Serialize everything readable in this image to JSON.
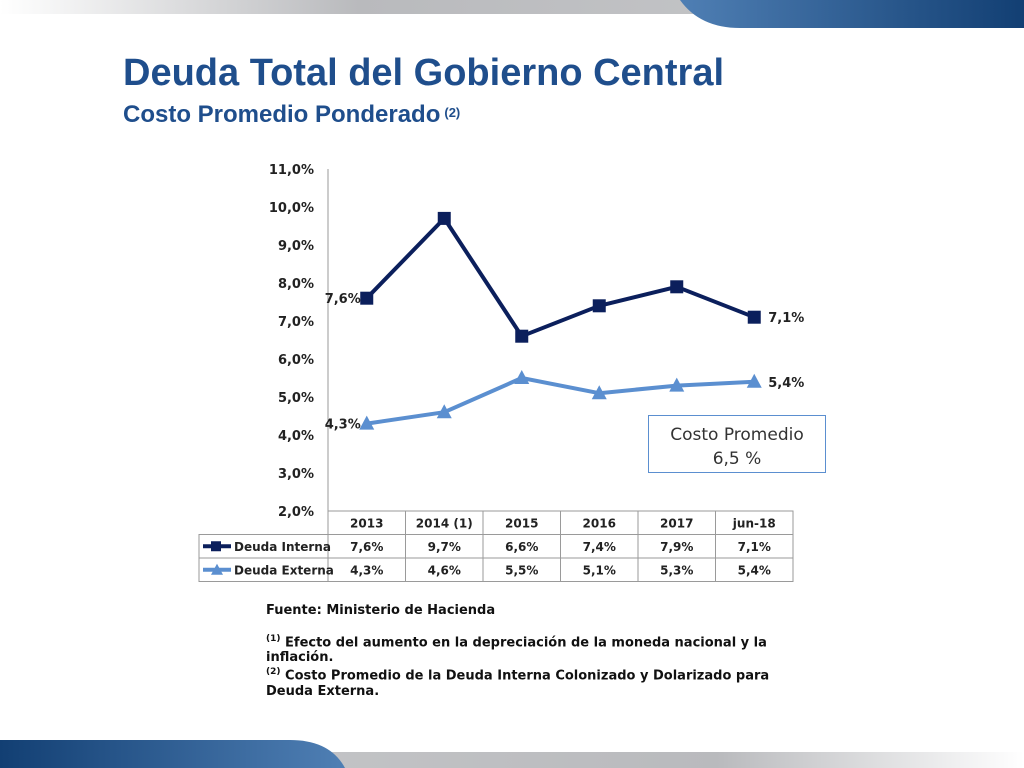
{
  "slide": {
    "title": "Deuda Total del Gobierno Central",
    "subtitle": "Costo Promedio Ponderado",
    "subtitle_note": "(2)"
  },
  "colors": {
    "title": "#1f4e8c",
    "interna": "#0b1f5c",
    "externa": "#5b8fd0",
    "deco_blue": "#1f5a93",
    "deco_gray": "#c5c6c9"
  },
  "average_box": {
    "line1": "Costo Promedio",
    "line2": "6,5 %"
  },
  "footnotes": {
    "source": "Fuente: Ministerio de Hacienda",
    "note1_marker": "(1)",
    "note1_text": "Efecto del aumento en la depreciación de la moneda nacional y la inflación.",
    "note2_marker": "(2)",
    "note2_text": "Costo Promedio de la Deuda Interna Colonizado y Dolarizado para Deuda Externa."
  },
  "chart_data": {
    "type": "line",
    "categories": [
      "2013",
      "2014 (1)",
      "2015",
      "2016",
      "2017",
      "jun-18"
    ],
    "series": [
      {
        "name": "Deuda Interna",
        "marker": "square",
        "values": [
          7.6,
          9.7,
          6.6,
          7.4,
          7.9,
          7.1
        ],
        "table_labels": [
          "7,6%",
          "9,7%",
          "6,6%",
          "7,4%",
          "7,9%",
          "7,1%"
        ],
        "point_labels": [
          "7,6%",
          "",
          "",
          "",
          "",
          "7,1%"
        ]
      },
      {
        "name": "Deuda Externa",
        "marker": "triangle",
        "values": [
          4.3,
          4.6,
          5.5,
          5.1,
          5.3,
          5.4
        ],
        "table_labels": [
          "4,3%",
          "4,6%",
          "5,5%",
          "5,1%",
          "5,3%",
          "5,4%"
        ],
        "point_labels": [
          "4,3%",
          "",
          "",
          "",
          "",
          "5,4%"
        ]
      }
    ],
    "ylim": [
      2.0,
      11.0
    ],
    "yticks": [
      2.0,
      3.0,
      4.0,
      5.0,
      6.0,
      7.0,
      8.0,
      9.0,
      10.0,
      11.0
    ],
    "ytick_labels": [
      "2,0%",
      "3,0%",
      "4,0%",
      "5,0%",
      "6,0%",
      "7,0%",
      "8,0%",
      "9,0%",
      "10,0%",
      "11,0%"
    ],
    "grid": false,
    "legend": "data-table"
  }
}
